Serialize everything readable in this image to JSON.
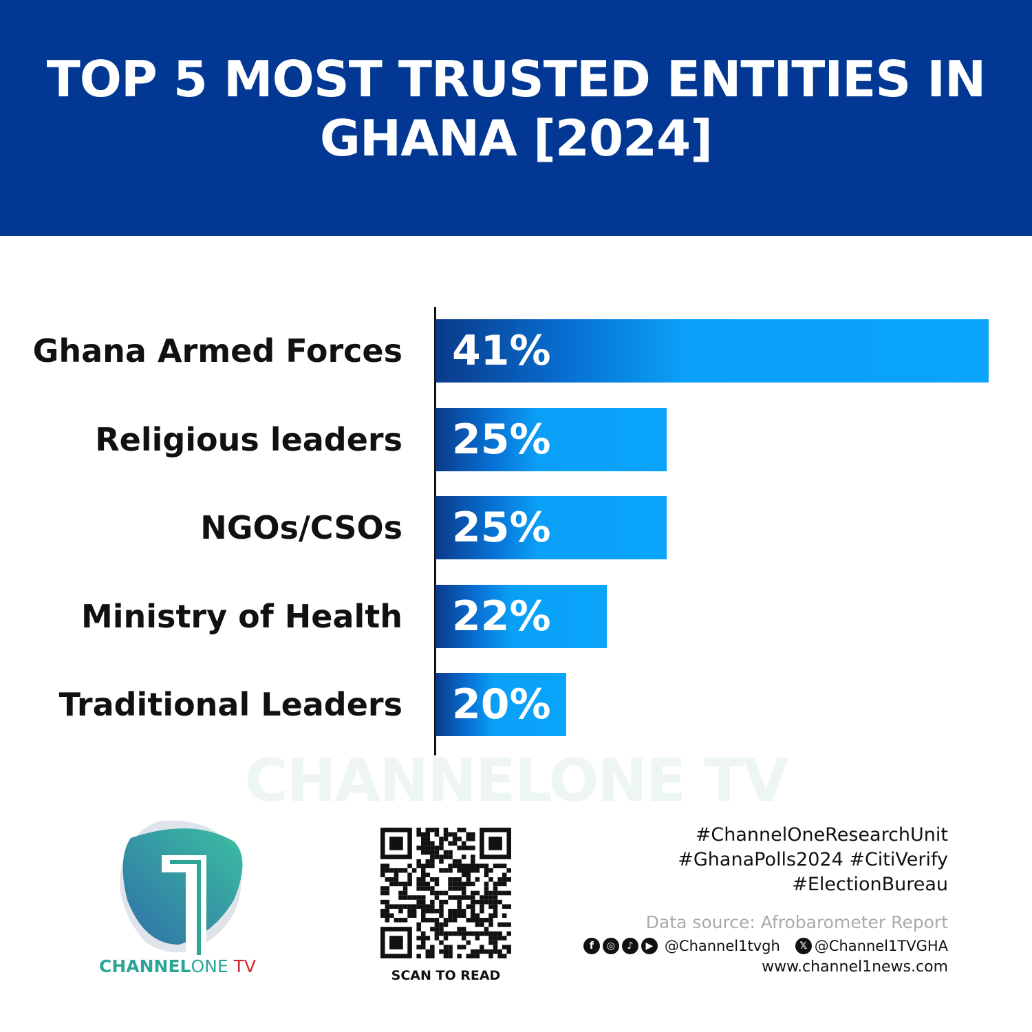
{
  "chart_data": {
    "type": "bar",
    "orientation": "horizontal",
    "title": "TOP 5 MOST TRUSTED ENTITIES IN GHANA [2024]",
    "categories": [
      "Ghana Armed Forces",
      "Religious leaders",
      "NGOs/CSOs",
      "Ministry of Health",
      "Traditional Leaders"
    ],
    "values": [
      41,
      25,
      25,
      22,
      20
    ],
    "value_labels": [
      "41%",
      "25%",
      "25%",
      "22%",
      "20%"
    ],
    "unit": "%",
    "xlim": [
      13.5,
      41
    ],
    "grid": false,
    "colors": {
      "bar_start": "#0a3a8a",
      "bar_end": "#0aa4fb",
      "header": "#023893"
    }
  },
  "watermark": "CHANNELONE TV",
  "logo": {
    "part1": "CHANNEL",
    "part2": "ONE",
    "part3": " TV"
  },
  "qr": {
    "caption": "SCAN TO READ"
  },
  "footer": {
    "hashtags": [
      "#ChannelOneResearchUnit",
      "#GhanaPolls2024 #CitiVerify",
      "#ElectionBureau"
    ],
    "source": "Data source: Afrobarometer Report",
    "social_icons": [
      "facebook-icon",
      "instagram-icon",
      "tiktok-icon",
      "youtube-icon"
    ],
    "handle1": "@Channel1tvgh",
    "handle2": "@Channel1TVGHA",
    "website": "www.channel1news.com"
  }
}
